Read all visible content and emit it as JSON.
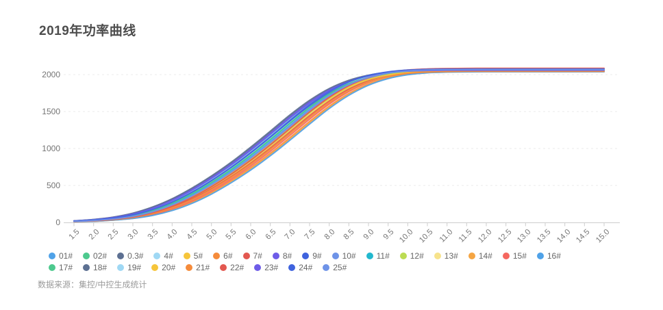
{
  "title": "2019年功率曲线",
  "source_note": "数据来源：集控/中控生成统计",
  "ui_colors": {
    "background": "#ffffff",
    "title_text": "#4d4d4d",
    "axis_label": "#757575",
    "legend_text": "#666666",
    "source_text": "#9b9b9b",
    "axis_line": "#cccccc",
    "grid_line": "#ebebeb"
  },
  "chart_data": {
    "type": "line",
    "title": "2019年功率曲线",
    "xlabel": "",
    "ylabel": "",
    "x": [
      1.5,
      2.0,
      2.5,
      3.0,
      3.5,
      4.0,
      4.5,
      5.0,
      5.5,
      6.0,
      6.5,
      7.0,
      7.5,
      8.0,
      8.5,
      9.0,
      9.5,
      10.0,
      10.5,
      11.0,
      11.5,
      12.0,
      12.5,
      13.0,
      13.5,
      14.0,
      14.5,
      15.0
    ],
    "y_ticks": [
      0,
      500,
      1000,
      1500,
      2000
    ],
    "ylim": [
      0,
      2150
    ],
    "grid": "horizontal-dashed",
    "legend_position": "bottom-left-two-rows",
    "palette": [
      "#4fa2e8",
      "#4dc98e",
      "#5d7092",
      "#9fd8f4",
      "#f6c53a",
      "#f58b3b",
      "#e35850",
      "#6e5ce8",
      "#3f63de",
      "#6e93e8",
      "#22b8ce",
      "#bcdc53",
      "#f7e38c",
      "#f5a543",
      "#f5675f"
    ],
    "base_max": 2058,
    "base_curve": [
      12,
      25,
      45,
      80,
      140,
      230,
      350,
      500,
      670,
      860,
      1070,
      1290,
      1510,
      1700,
      1850,
      1950,
      2010,
      2040,
      2052,
      2056,
      2058,
      2058,
      2058,
      2058,
      2058,
      2058,
      2058,
      2058
    ],
    "series": [
      {
        "name": "01#",
        "color": "#4fa2e8",
        "shift": -0.05,
        "max": 2060
      },
      {
        "name": "02#",
        "color": "#4dc98e",
        "shift": -0.25,
        "max": 2065
      },
      {
        "name": "0.3#",
        "color": "#5d7092",
        "shift": -0.35,
        "max": 2050
      },
      {
        "name": "4#",
        "color": "#9fd8f4",
        "shift": -0.15,
        "max": 2070
      },
      {
        "name": "5#",
        "color": "#f6c53a",
        "shift": 0.1,
        "max": 2045
      },
      {
        "name": "6#",
        "color": "#f58b3b",
        "shift": 0.3,
        "max": 2040
      },
      {
        "name": "7#",
        "color": "#e35850",
        "shift": 0.15,
        "max": 2055
      },
      {
        "name": "8#",
        "color": "#6e5ce8",
        "shift": -0.3,
        "max": 2060
      },
      {
        "name": "9#",
        "color": "#3f63de",
        "shift": -0.2,
        "max": 2050
      },
      {
        "name": "10#",
        "color": "#6e93e8",
        "shift": 0.0,
        "max": 2055
      },
      {
        "name": "11#",
        "color": "#22b8ce",
        "shift": -0.1,
        "max": 2065
      },
      {
        "name": "12#",
        "color": "#bcdc53",
        "shift": 0.05,
        "max": 2050
      },
      {
        "name": "13#",
        "color": "#f7e38c",
        "shift": 0.2,
        "max": 2048
      },
      {
        "name": "14#",
        "color": "#f5a543",
        "shift": 0.35,
        "max": 2042
      },
      {
        "name": "15#",
        "color": "#f5675f",
        "shift": 0.25,
        "max": 2052
      },
      {
        "name": "16#",
        "color": "#4fa2e8",
        "shift": 0.38,
        "max": 2038
      },
      {
        "name": "17#",
        "color": "#4dc98e",
        "shift": -0.12,
        "max": 2058
      },
      {
        "name": "18#",
        "color": "#5d7092",
        "shift": -0.38,
        "max": 2055
      },
      {
        "name": "19#",
        "color": "#9fd8f4",
        "shift": -0.22,
        "max": 2062
      },
      {
        "name": "20#",
        "color": "#f6c53a",
        "shift": 0.02,
        "max": 2047
      },
      {
        "name": "21#",
        "color": "#f58b3b",
        "shift": 0.18,
        "max": 2044
      },
      {
        "name": "22#",
        "color": "#e35850",
        "shift": 0.08,
        "max": 2085
      },
      {
        "name": "23#",
        "color": "#6e5ce8",
        "shift": -0.28,
        "max": 2058
      },
      {
        "name": "24#",
        "color": "#3f63de",
        "shift": -0.18,
        "max": 2075
      },
      {
        "name": "25#",
        "color": "#6e93e8",
        "shift": -0.02,
        "max": 2068
      }
    ]
  }
}
